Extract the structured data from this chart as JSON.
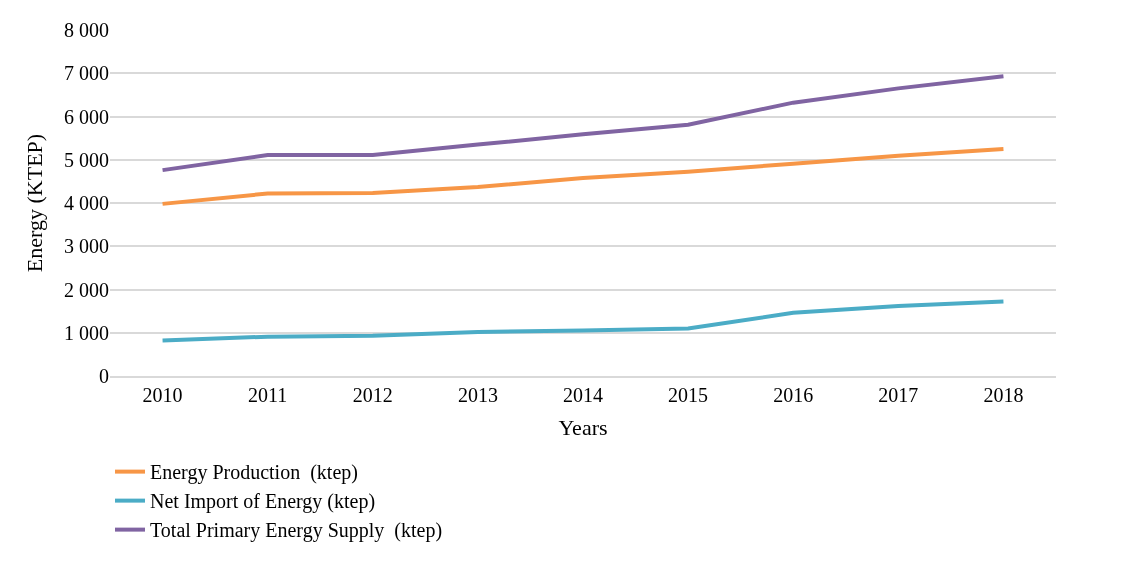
{
  "chart_data": {
    "type": "line",
    "xlabel": "Years",
    "ylabel": "Energy (KTEP)",
    "categories": [
      "2010",
      "2011",
      "2012",
      "2013",
      "2014",
      "2015",
      "2016",
      "2017",
      "2018"
    ],
    "series": [
      {
        "name": "Energy Production  (ktep)",
        "color": "#f79646",
        "values": [
          3980,
          4220,
          4230,
          4370,
          4580,
          4720,
          4910,
          5090,
          5250
        ]
      },
      {
        "name": "Net Import of Energy (ktep)",
        "color": "#4bacc6",
        "values": [
          820,
          910,
          930,
          1020,
          1050,
          1100,
          1460,
          1620,
          1720
        ]
      },
      {
        "name": "Total Primary Energy Supply  (ktep)",
        "color": "#8064a2",
        "values": [
          4760,
          5110,
          5110,
          5350,
          5590,
          5810,
          6320,
          6650,
          6930
        ]
      }
    ],
    "ylim": [
      0,
      8000
    ],
    "yticks": [
      0,
      {
        "value": 1000,
        "label": "1 000"
      },
      {
        "value": 2000,
        "label": "2 000"
      },
      {
        "value": 3000,
        "label": "3 000"
      },
      {
        "value": 4000,
        "label": "4 000"
      },
      {
        "value": 5000,
        "label": "5 000"
      },
      {
        "value": 6000,
        "label": "6 000"
      },
      {
        "value": 7000,
        "label": "7 000"
      },
      {
        "value": 8000,
        "label": "8 000"
      }
    ],
    "grid": "y",
    "legend": "bottom",
    "marker": "none",
    "line_style": "solid"
  }
}
